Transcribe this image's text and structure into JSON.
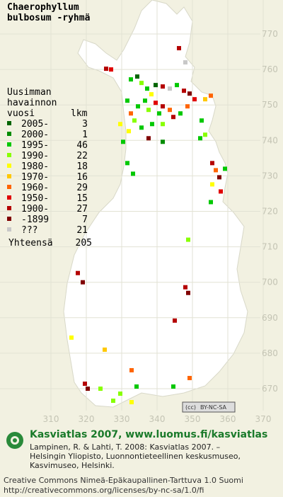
{
  "map": {
    "title": [
      "Chaerophyllum",
      "bulbosum -ryhmä"
    ],
    "legend_heading": [
      "Uusimman",
      "havainnon",
      "vuosi"
    ],
    "count_heading": "lkm",
    "legend": [
      {
        "label": "2005-",
        "count": 3,
        "color": "#006400"
      },
      {
        "label": "2000-",
        "count": 1,
        "color": "#008c00"
      },
      {
        "label": "1995-",
        "count": 46,
        "color": "#00c800"
      },
      {
        "label": "1990-",
        "count": 22,
        "color": "#88ff00"
      },
      {
        "label": "1980-",
        "count": 18,
        "color": "#ffff00"
      },
      {
        "label": "1970-",
        "count": 16,
        "color": "#ffc800"
      },
      {
        "label": "1960-",
        "count": 29,
        "color": "#ff6400"
      },
      {
        "label": "1950-",
        "count": 15,
        "color": "#e00000"
      },
      {
        "label": "1900-",
        "count": 27,
        "color": "#b40000"
      },
      {
        "label": "-1899",
        "count": 7,
        "color": "#800000"
      },
      {
        "label": "???",
        "count": 21,
        "color": "#c8c8c8"
      }
    ],
    "total_label": "Yhteensä",
    "total": 205,
    "xticks": [
      310,
      320,
      330,
      340,
      350,
      360,
      370
    ],
    "yticks": [
      770,
      760,
      750,
      740,
      730,
      720,
      710,
      700,
      690,
      680,
      670
    ],
    "points": [
      [
        325.6,
        760.2,
        8
      ],
      [
        327,
        760,
        7
      ],
      [
        346.2,
        766,
        8
      ],
      [
        348,
        762,
        10
      ],
      [
        332.6,
        757.2,
        2
      ],
      [
        334.4,
        758,
        0
      ],
      [
        335.6,
        756.2,
        3
      ],
      [
        337.2,
        754.6,
        2
      ],
      [
        338.4,
        753,
        4
      ],
      [
        336.6,
        751.2,
        2
      ],
      [
        339.6,
        750.6,
        7
      ],
      [
        341.6,
        749.6,
        8
      ],
      [
        343.6,
        748.6,
        6
      ],
      [
        340.6,
        747.6,
        2
      ],
      [
        337.6,
        748.6,
        3
      ],
      [
        334.6,
        749.6,
        2
      ],
      [
        332.6,
        747.6,
        6
      ],
      [
        333.6,
        745.6,
        3
      ],
      [
        332,
        742.6,
        4
      ],
      [
        335.6,
        743.6,
        2
      ],
      [
        338.6,
        744.6,
        2
      ],
      [
        341.6,
        744.6,
        3
      ],
      [
        344.6,
        746.6,
        8
      ],
      [
        346.6,
        747.6,
        2
      ],
      [
        347.6,
        754,
        8
      ],
      [
        349.2,
        753.2,
        9
      ],
      [
        350.6,
        751.6,
        7
      ],
      [
        348.6,
        749.6,
        6
      ],
      [
        345.6,
        755.6,
        2
      ],
      [
        343.6,
        754.6,
        10
      ],
      [
        341.6,
        755.2,
        8
      ],
      [
        353.6,
        751.6,
        5
      ],
      [
        355.2,
        752.6,
        6
      ],
      [
        352.6,
        745.6,
        2
      ],
      [
        353.6,
        741.6,
        3
      ],
      [
        352.2,
        740.6,
        2
      ],
      [
        355.6,
        733.6,
        8
      ],
      [
        356.6,
        731.6,
        6
      ],
      [
        357.6,
        729.6,
        9
      ],
      [
        355.6,
        727.6,
        4
      ],
      [
        358,
        725.6,
        7
      ],
      [
        359.2,
        732,
        2
      ],
      [
        355.2,
        722.6,
        2
      ],
      [
        331.6,
        733.6,
        2
      ],
      [
        333.2,
        730.6,
        2
      ],
      [
        329.6,
        744.6,
        4
      ],
      [
        330.4,
        739.6,
        2
      ],
      [
        348.8,
        712,
        3
      ],
      [
        348,
        698.6,
        8
      ],
      [
        348.8,
        697,
        9
      ],
      [
        317.6,
        702.6,
        8
      ],
      [
        319,
        700,
        9
      ],
      [
        315.8,
        684.4,
        4
      ],
      [
        325.2,
        681,
        5
      ],
      [
        332.8,
        675.2,
        6
      ],
      [
        345,
        689.2,
        8
      ],
      [
        319.6,
        671.4,
        8
      ],
      [
        320.4,
        670,
        9
      ],
      [
        334.2,
        670.6,
        2
      ],
      [
        329.6,
        668.6,
        3
      ],
      [
        327.6,
        666.6,
        3
      ],
      [
        332.8,
        666.2,
        4
      ],
      [
        344.6,
        670.6,
        2
      ],
      [
        349.2,
        673,
        6
      ],
      [
        324,
        670,
        3
      ],
      [
        341.6,
        739.6,
        1
      ],
      [
        337.6,
        740.6,
        9
      ],
      [
        339.6,
        755.6,
        0
      ],
      [
        331.6,
        751.2,
        2
      ]
    ],
    "license_badge": "BY-NC-SA",
    "footer": {
      "heading": "Kasviatlas 2007, www.luomus.fi/kasviatlas",
      "citation": [
        "Lampinen, R. & Lahti, T. 2008: Kasviatlas 2007. –",
        "Helsingin Yliopisto, Luonnontieteellinen keskusmuseo,",
        "Kasvimuseo, Helsinki."
      ],
      "license": [
        "Creative Commons Nimeä-Epäkaupallinen-Tarttuva 1.0 Suomi",
        "http://creativecommons.org/licenses/by-nc-sa/1.0/fi"
      ]
    }
  }
}
